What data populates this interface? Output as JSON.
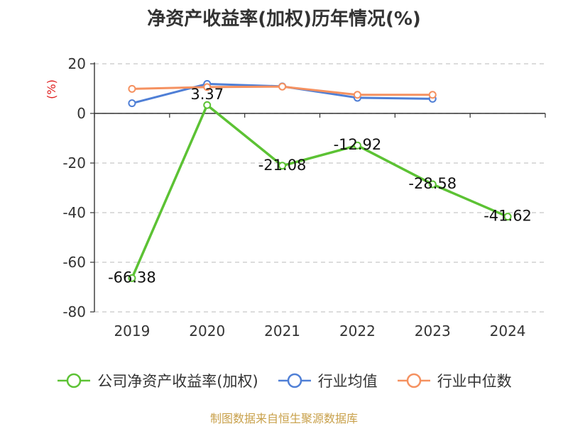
{
  "title": "净资产收益率(加权)历年情况(%)",
  "source": "制图数据来自恒生聚源数据库",
  "source_color": "#c8a04a",
  "chart_data": {
    "type": "line",
    "title": "净资产收益率(加权)历年情况(%)",
    "xlabel": "",
    "ylabel": "(%)",
    "ylim": [
      -80,
      20
    ],
    "yticks": [
      20,
      0,
      -20,
      -40,
      -60,
      -80
    ],
    "categories": [
      "2019",
      "2020",
      "2021",
      "2022",
      "2023",
      "2024"
    ],
    "grid": true,
    "legend_position": "bottom",
    "series": [
      {
        "name": "公司净资产收益率(加权)",
        "color": "#5cc234",
        "values": [
          -66.38,
          3.37,
          -21.08,
          -12.92,
          -28.58,
          -41.62
        ],
        "labels": [
          "-66.38",
          "3.37",
          "-21.08",
          "-12.92",
          "-28.58",
          "-41.62"
        ]
      },
      {
        "name": "行业均值",
        "color": "#4f7fd6",
        "values": [
          4.1,
          11.9,
          10.9,
          6.3,
          5.9,
          null
        ]
      },
      {
        "name": "行业中位数",
        "color": "#f59160",
        "values": [
          9.9,
          10.6,
          10.8,
          7.5,
          7.5,
          null
        ]
      }
    ]
  }
}
